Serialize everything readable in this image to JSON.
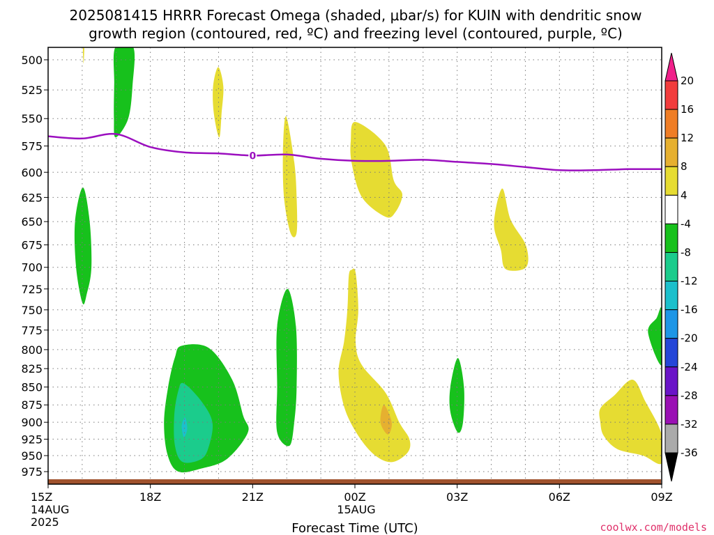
{
  "chart_data": {
    "type": "heatmap",
    "title_line1": "2025081415 HRRR Forecast Omega (shaded, μbar/s) for KUIN with dendritic snow",
    "title_line2": "growth region (contoured, red, ºC) and freezing level (contoured, purple, ºC)",
    "xlabel": "Forecast Time (UTC)",
    "credit": "coolwx.com/models",
    "x_unit": "forecast hour",
    "xlim": [
      0,
      18
    ],
    "x_ticks": [
      {
        "hour": 0,
        "l1": "15Z",
        "l2": "14AUG",
        "l3": "2025"
      },
      {
        "hour": 3,
        "l1": "18Z",
        "l2": "",
        "l3": ""
      },
      {
        "hour": 6,
        "l1": "21Z",
        "l2": "",
        "l3": ""
      },
      {
        "hour": 9,
        "l1": "00Z",
        "l2": "15AUG",
        "l3": ""
      },
      {
        "hour": 12,
        "l1": "03Z",
        "l2": "",
        "l3": ""
      },
      {
        "hour": 15,
        "l1": "06Z",
        "l2": "",
        "l3": ""
      },
      {
        "hour": 18,
        "l1": "09Z",
        "l2": "",
        "l3": ""
      }
    ],
    "ylabel": "",
    "y_unit": "hPa",
    "ylim": [
      490,
      995
    ],
    "y_log": true,
    "y_ticks": [
      500,
      525,
      550,
      575,
      600,
      625,
      650,
      675,
      700,
      725,
      750,
      775,
      800,
      825,
      850,
      875,
      900,
      925,
      950,
      975
    ],
    "grid": true,
    "colorbar": {
      "labels": [
        "20",
        "16",
        "12",
        "8",
        "4",
        "-4",
        "-8",
        "-12",
        "-16",
        "-20",
        "-24",
        "-28",
        "-32",
        "-36"
      ],
      "colors": [
        "#f0208a",
        "#f23c3c",
        "#ef7d25",
        "#e6b030",
        "#e6dc32",
        "#ffffff",
        "#17c11c",
        "#1bcc8c",
        "#1cc0cc",
        "#1e96e6",
        "#2546d8",
        "#6a14c8",
        "#9a10b4",
        "#aaaaaa",
        "#000000"
      ]
    },
    "freezing_level": {
      "label": "0",
      "label_hour": 6.0,
      "hours": [
        0,
        1,
        2,
        3,
        4,
        5,
        6,
        7,
        8,
        9,
        10,
        11,
        12,
        13,
        14,
        15,
        16,
        17,
        18
      ],
      "pressure_hPa": [
        566,
        568,
        564,
        576,
        581,
        582,
        584,
        583,
        587,
        589,
        589,
        588,
        590,
        592,
        595,
        598,
        598,
        597,
        597
      ]
    },
    "terrain_color": "#a0522d",
    "omega_regions": [
      {
        "category": "4 to 8",
        "color": "#e6dc32",
        "points": [
          [
            1.02,
            490
          ],
          [
            1.06,
            490
          ],
          [
            1.04,
            503
          ]
        ]
      },
      {
        "category": "-4 to -8",
        "color": "#17c11c",
        "points": [
          [
            1.97,
            490
          ],
          [
            2.5,
            490
          ],
          [
            2.48,
            520
          ],
          [
            2.35,
            550
          ],
          [
            1.98,
            567
          ],
          [
            1.93,
            550
          ],
          [
            1.94,
            520
          ]
        ]
      },
      {
        "category": "4 to 8",
        "color": "#e6dc32",
        "points": [
          [
            4.99,
            506
          ],
          [
            5.14,
            522
          ],
          [
            5.09,
            545
          ],
          [
            5.02,
            567
          ],
          [
            4.86,
            545
          ],
          [
            4.84,
            522
          ]
        ]
      },
      {
        "category": "4 to 8",
        "color": "#e6dc32",
        "points": [
          [
            6.98,
            548
          ],
          [
            7.22,
            590
          ],
          [
            7.29,
            625
          ],
          [
            7.29,
            662
          ],
          [
            7.11,
            662
          ],
          [
            6.92,
            625
          ],
          [
            6.89,
            580
          ]
        ]
      },
      {
        "category": "4 to 8",
        "color": "#e6dc32",
        "points": [
          [
            9.02,
            553
          ],
          [
            9.89,
            574
          ],
          [
            10.14,
            608
          ],
          [
            10.39,
            622
          ],
          [
            10.19,
            640
          ],
          [
            9.9,
            645
          ],
          [
            9.21,
            625
          ],
          [
            8.91,
            592
          ],
          [
            8.88,
            570
          ]
        ]
      },
      {
        "category": "-4 to -8",
        "color": "#17c11c",
        "points": [
          [
            1.02,
            615
          ],
          [
            1.22,
            650
          ],
          [
            1.27,
            700
          ],
          [
            1.14,
            730
          ],
          [
            1.01,
            742
          ],
          [
            0.82,
            700
          ],
          [
            0.79,
            650
          ]
        ]
      },
      {
        "category": "4 to 8",
        "color": "#e6dc32",
        "points": [
          [
            13.32,
            616
          ],
          [
            13.57,
            648
          ],
          [
            14.02,
            676
          ],
          [
            14.02,
            700
          ],
          [
            13.42,
            702
          ],
          [
            13.28,
            680
          ],
          [
            13.08,
            652
          ]
        ]
      },
      {
        "category": "-4 to -8",
        "color": "#17c11c",
        "points": [
          [
            7.02,
            725
          ],
          [
            7.27,
            770
          ],
          [
            7.29,
            850
          ],
          [
            7.22,
            900
          ],
          [
            7.08,
            935
          ],
          [
            6.72,
            915
          ],
          [
            6.72,
            850
          ],
          [
            6.72,
            770
          ]
        ]
      },
      {
        "category": "4 to 8",
        "color": "#e6dc32",
        "points": [
          [
            8.9,
            703
          ],
          [
            9.02,
            706
          ],
          [
            9.1,
            750
          ],
          [
            9.02,
            790
          ],
          [
            9.2,
            820
          ],
          [
            9.9,
            858
          ],
          [
            10.3,
            900
          ],
          [
            10.6,
            925
          ],
          [
            10.55,
            945
          ],
          [
            10.1,
            960
          ],
          [
            9.6,
            950
          ],
          [
            9.1,
            920
          ],
          [
            8.7,
            880
          ],
          [
            8.52,
            830
          ],
          [
            8.68,
            790
          ],
          [
            8.78,
            750
          ],
          [
            8.82,
            710
          ]
        ]
      },
      {
        "category": "8 to 12",
        "color": "#e6b030",
        "points": [
          [
            9.85,
            875
          ],
          [
            10.08,
            900
          ],
          [
            9.97,
            918
          ],
          [
            9.75,
            900
          ]
        ]
      },
      {
        "category": "-4 to -8",
        "color": "#17c11c",
        "points": [
          [
            12.02,
            811
          ],
          [
            12.2,
            850
          ],
          [
            12.17,
            900
          ],
          [
            12.02,
            915
          ],
          [
            11.8,
            885
          ],
          [
            11.8,
            850
          ]
        ]
      },
      {
        "category": "-4 to -8",
        "color": "#17c11c",
        "points": [
          [
            3.92,
            795
          ],
          [
            4.72,
            798
          ],
          [
            5.4,
            840
          ],
          [
            5.72,
            890
          ],
          [
            5.86,
            915
          ],
          [
            5.25,
            955
          ],
          [
            4.5,
            970
          ],
          [
            3.82,
            975
          ],
          [
            3.5,
            948
          ],
          [
            3.4,
            900
          ],
          [
            3.52,
            850
          ],
          [
            3.72,
            810
          ]
        ]
      },
      {
        "category": "-8 to -12",
        "color": "#1bcc8c",
        "points": [
          [
            3.98,
            845
          ],
          [
            4.5,
            870
          ],
          [
            4.82,
            900
          ],
          [
            4.72,
            935
          ],
          [
            4.5,
            955
          ],
          [
            3.95,
            960
          ],
          [
            3.72,
            935
          ],
          [
            3.7,
            890
          ],
          [
            3.82,
            855
          ]
        ]
      },
      {
        "category": "-12 to -16",
        "color": "#1cc0cc",
        "points": [
          [
            4.02,
            893
          ],
          [
            4.08,
            910
          ],
          [
            3.98,
            922
          ],
          [
            3.92,
            905
          ]
        ]
      },
      {
        "category": "4 to 8",
        "color": "#e6dc32",
        "points": [
          [
            17.15,
            840
          ],
          [
            17.52,
            870
          ],
          [
            18.0,
            918
          ],
          [
            18.0,
            962
          ],
          [
            17.45,
            950
          ],
          [
            16.7,
            940
          ],
          [
            16.3,
            920
          ],
          [
            16.2,
            900
          ],
          [
            16.2,
            880
          ],
          [
            16.6,
            862
          ]
        ]
      },
      {
        "category": "-4 to -8",
        "color": "#17c11c",
        "points": [
          [
            18.0,
            750
          ],
          [
            18.0,
            820
          ],
          [
            17.6,
            778
          ],
          [
            17.85,
            760
          ]
        ]
      }
    ]
  }
}
